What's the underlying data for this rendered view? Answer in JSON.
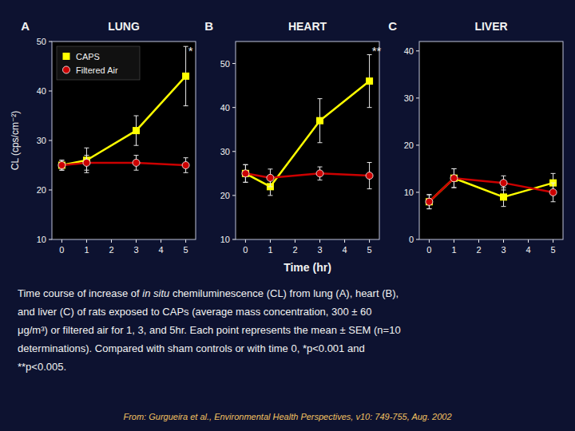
{
  "chart_data": [
    {
      "type": "line",
      "title": "LUNG",
      "panel_label": "A",
      "ylabel": "CL (cps/cm⁻²)",
      "x": [
        0,
        1,
        3,
        5
      ],
      "xlim": [
        -0.4,
        5.4
      ],
      "xticks": [
        0,
        1,
        2,
        3,
        4,
        5
      ],
      "ylim": [
        10,
        50
      ],
      "yticks": [
        10,
        20,
        30,
        40,
        50
      ],
      "grid": false,
      "legend": "upper left",
      "series": [
        {
          "name": "CAPS",
          "color": "#FFFF00",
          "marker": "square",
          "values": [
            25,
            26,
            32,
            43
          ],
          "errors": [
            1,
            2.5,
            3,
            6
          ]
        },
        {
          "name": "Filtered Air",
          "color": "#CC0000",
          "marker": "circle",
          "values": [
            25,
            25.5,
            25.5,
            25
          ],
          "errors": [
            1,
            1.5,
            1.5,
            1.5
          ]
        }
      ],
      "annotations": [
        {
          "text": "*",
          "x": 5.1,
          "y": 49
        }
      ]
    },
    {
      "type": "line",
      "title": "HEART",
      "panel_label": "B",
      "xlabel": "Time (hr)",
      "x": [
        0,
        1,
        3,
        5
      ],
      "xlim": [
        -0.4,
        5.4
      ],
      "xticks": [
        0,
        1,
        2,
        3,
        4,
        5
      ],
      "ylim": [
        10,
        55
      ],
      "yticks": [
        10,
        20,
        30,
        40,
        50
      ],
      "grid": false,
      "series": [
        {
          "color": "#FFFF00",
          "marker": "square",
          "values": [
            25,
            22,
            37,
            46
          ],
          "errors": [
            2,
            2,
            5,
            6
          ]
        },
        {
          "color": "#CC0000",
          "marker": "circle",
          "values": [
            25,
            24,
            25,
            24.5
          ],
          "errors": [
            2,
            2,
            1.5,
            3
          ]
        }
      ],
      "annotations": [
        {
          "text": "**",
          "x": 5.1,
          "y": 54
        }
      ]
    },
    {
      "type": "line",
      "title": "LIVER",
      "panel_label": "C",
      "x": [
        0,
        1,
        3,
        5
      ],
      "xlim": [
        -0.4,
        5.4
      ],
      "xticks": [
        0,
        1,
        2,
        3,
        4,
        5
      ],
      "ylim": [
        0,
        42
      ],
      "yticks": [
        0,
        10,
        20,
        30,
        40
      ],
      "grid": false,
      "series": [
        {
          "color": "#FFFF00",
          "marker": "square",
          "values": [
            8,
            13,
            9,
            12
          ],
          "errors": [
            1.5,
            2,
            2,
            2
          ]
        },
        {
          "color": "#CC0000",
          "marker": "circle",
          "values": [
            8,
            13,
            12,
            10
          ],
          "errors": [
            1.5,
            2,
            1.5,
            2
          ]
        }
      ]
    }
  ],
  "caption": [
    [
      "Time course of increase of ",
      "in situ",
      " chemiluminescence (CL) from lung (A), heart (B),"
    ],
    [
      "and liver (C) of rats exposed to CAPs (average mass concentration, 300 ± 60"
    ],
    [
      "μg/m³) or filtered air for 1, 3, and 5hr. Each point represents the mean ± SEM (n=10"
    ],
    [
      "determinations). Compared with sham controls or with time 0, *p<0.001 and"
    ],
    [
      "**p<0.005."
    ]
  ],
  "source": "From: Gurgueira et al., Environmental Health Perspectives, v10: 749-755, Aug. 2002"
}
